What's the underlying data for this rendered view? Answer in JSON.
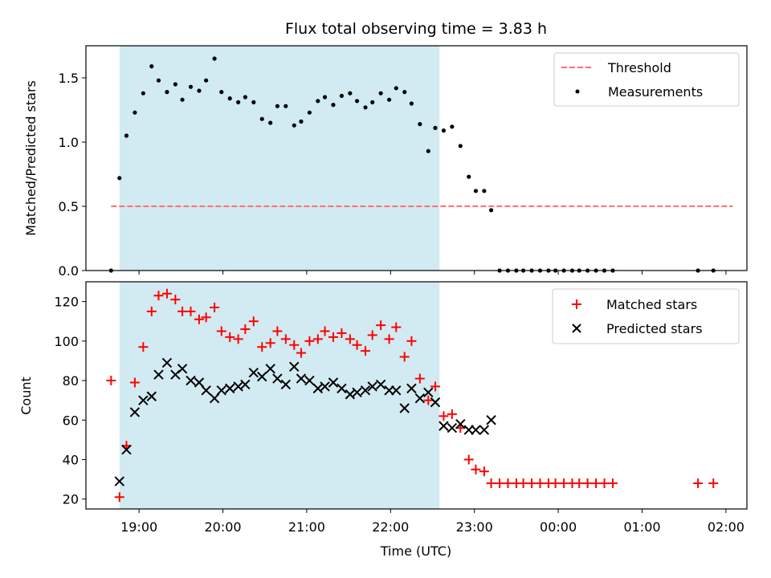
{
  "figure": {
    "title": "Flux total observing time = 3.83 h",
    "xlabel": "Time (UTC)",
    "xticks": [
      "19:00",
      "20:00",
      "21:00",
      "22:00",
      "23:00",
      "00:00",
      "01:00",
      "02:00"
    ],
    "span_color": "#add8e6",
    "colors": {
      "threshold": "#ff7070",
      "measure": "#000000",
      "matched": "#ff0000",
      "predicted": "#000000"
    }
  },
  "chart_data": [
    {
      "type": "scatter",
      "panel": "top",
      "ylabel": "Matched/Predicted stars",
      "xlim": [
        "18:22",
        "02:15"
      ],
      "ylim": [
        0,
        1.75
      ],
      "yticks": [
        "0.0",
        "0.5",
        "1.0",
        "1.5"
      ],
      "grid": false,
      "legend_position": "upper right",
      "shaded_span": [
        "18:46",
        "22:35"
      ],
      "threshold": {
        "name": "Threshold",
        "value": 0.5,
        "x": [
          "18:40",
          "02:05"
        ],
        "style": "dashed"
      },
      "series": [
        {
          "name": "Measurements",
          "x": [
            "18:40",
            "18:46",
            "18:51",
            "18:57",
            "19:03",
            "19:09",
            "19:14",
            "19:20",
            "19:26",
            "19:31",
            "19:37",
            "19:43",
            "19:48",
            "19:54",
            "19:59",
            "20:05",
            "20:11",
            "20:16",
            "20:22",
            "20:28",
            "20:34",
            "20:39",
            "20:45",
            "20:51",
            "20:56",
            "21:02",
            "21:08",
            "21:13",
            "21:19",
            "21:25",
            "21:31",
            "21:36",
            "21:42",
            "21:47",
            "21:53",
            "21:59",
            "22:04",
            "22:10",
            "22:15",
            "22:21",
            "22:27",
            "22:32",
            "22:38",
            "22:44",
            "22:50",
            "22:56",
            "23:01",
            "23:07",
            "23:12",
            "23:18",
            "23:24",
            "23:30",
            "23:35",
            "23:41",
            "23:47",
            "23:53",
            "23:58",
            "00:04",
            "00:10",
            "00:15",
            "00:21",
            "00:27",
            "00:33",
            "00:39",
            "01:40",
            "01:51"
          ],
          "values": [
            0.0,
            0.72,
            1.05,
            1.23,
            1.38,
            1.59,
            1.48,
            1.39,
            1.45,
            1.33,
            1.43,
            1.4,
            1.48,
            1.65,
            1.39,
            1.34,
            1.31,
            1.35,
            1.31,
            1.18,
            1.15,
            1.28,
            1.28,
            1.13,
            1.16,
            1.23,
            1.32,
            1.35,
            1.29,
            1.36,
            1.38,
            1.32,
            1.27,
            1.31,
            1.38,
            1.33,
            1.42,
            1.39,
            1.3,
            1.14,
            0.93,
            1.11,
            1.09,
            1.12,
            0.97,
            0.73,
            0.62,
            0.62,
            0.47,
            0,
            0,
            0,
            0,
            0,
            0,
            0,
            0,
            0,
            0,
            0,
            0,
            0,
            0,
            0,
            0,
            0
          ]
        }
      ]
    },
    {
      "type": "scatter",
      "panel": "bottom",
      "ylabel": "Count",
      "xlim": [
        "18:22",
        "02:15"
      ],
      "ylim": [
        15,
        130
      ],
      "yticks": [
        "20",
        "40",
        "60",
        "80",
        "100",
        "120"
      ],
      "grid": false,
      "legend_position": "upper right",
      "shaded_span": [
        "18:46",
        "22:35"
      ],
      "series": [
        {
          "name": "Matched stars",
          "marker": "plus",
          "x": [
            "18:40",
            "18:46",
            "18:51",
            "18:57",
            "19:03",
            "19:09",
            "19:14",
            "19:20",
            "19:26",
            "19:31",
            "19:37",
            "19:43",
            "19:48",
            "19:54",
            "19:59",
            "20:05",
            "20:11",
            "20:16",
            "20:22",
            "20:28",
            "20:34",
            "20:39",
            "20:45",
            "20:51",
            "20:56",
            "21:02",
            "21:08",
            "21:13",
            "21:19",
            "21:25",
            "21:31",
            "21:36",
            "21:42",
            "21:47",
            "21:53",
            "21:59",
            "22:04",
            "22:10",
            "22:15",
            "22:21",
            "22:27",
            "22:32",
            "22:38",
            "22:44",
            "22:50",
            "22:56",
            "23:01",
            "23:07",
            "23:12",
            "23:18",
            "23:24",
            "23:30",
            "23:35",
            "23:41",
            "23:47",
            "23:53",
            "23:58",
            "00:04",
            "00:10",
            "00:15",
            "00:21",
            "00:27",
            "00:33",
            "00:39",
            "01:40",
            "01:51"
          ],
          "values": [
            80,
            21,
            47,
            79,
            97,
            115,
            123,
            124,
            121,
            115,
            115,
            111,
            112,
            117,
            105,
            102,
            101,
            106,
            110,
            97,
            99,
            105,
            101,
            98,
            94,
            100,
            101,
            105,
            102,
            104,
            101,
            98,
            95,
            103,
            108,
            101,
            107,
            92,
            100,
            81,
            70,
            77,
            62,
            63,
            56,
            40,
            35,
            34,
            28,
            28,
            28,
            28,
            28,
            28,
            28,
            28,
            28,
            28,
            28,
            28,
            28,
            28,
            28,
            28,
            28,
            28
          ]
        },
        {
          "name": "Predicted stars",
          "marker": "x",
          "x": [
            "18:46",
            "18:51",
            "18:57",
            "19:03",
            "19:09",
            "19:14",
            "19:20",
            "19:26",
            "19:31",
            "19:37",
            "19:43",
            "19:48",
            "19:54",
            "19:59",
            "20:05",
            "20:11",
            "20:16",
            "20:22",
            "20:28",
            "20:34",
            "20:39",
            "20:45",
            "20:51",
            "20:56",
            "21:02",
            "21:08",
            "21:13",
            "21:19",
            "21:25",
            "21:31",
            "21:36",
            "21:42",
            "21:47",
            "21:53",
            "21:59",
            "22:04",
            "22:10",
            "22:15",
            "22:21",
            "22:27",
            "22:32",
            "22:38",
            "22:44",
            "22:50",
            "22:56",
            "23:01",
            "23:07",
            "23:12"
          ],
          "values": [
            29,
            45,
            64,
            70,
            72,
            83,
            89,
            83,
            86,
            80,
            79,
            75,
            71,
            75,
            76,
            77,
            78,
            84,
            82,
            86,
            81,
            78,
            87,
            81,
            80,
            76,
            77,
            79,
            76,
            73,
            74,
            75,
            77,
            78,
            75,
            75,
            66,
            76,
            71,
            74,
            69,
            57,
            56,
            58,
            55,
            55,
            55,
            60
          ]
        }
      ]
    }
  ]
}
